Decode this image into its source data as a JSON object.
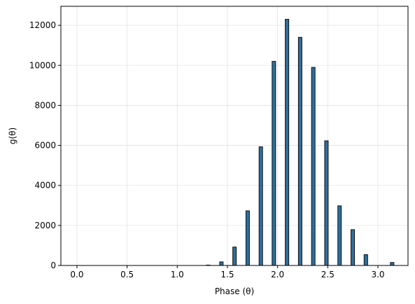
{
  "chart_data": {
    "type": "bar",
    "x_label": "Phase (θ)",
    "y_label": "g(θ)",
    "x": [
      1.309,
      1.44,
      1.571,
      1.702,
      1.833,
      1.963,
      2.094,
      2.225,
      2.356,
      2.487,
      2.618,
      2.749,
      2.88,
      3.142
    ],
    "values": [
      20,
      180,
      920,
      2730,
      5930,
      10200,
      12300,
      11400,
      9900,
      6230,
      2980,
      1790,
      540,
      150
    ],
    "color": "#2e6f9e",
    "edgecolor": "#111111",
    "xlim": [
      -0.16,
      3.3
    ],
    "ylim": [
      0,
      12950
    ],
    "xticks": [
      {
        "value": 0,
        "label": "0.0"
      },
      {
        "value": 0.5,
        "label": "0.5"
      },
      {
        "value": 1,
        "label": "1.0"
      },
      {
        "value": 1.5,
        "label": "1.5"
      },
      {
        "value": 2,
        "label": "2.0"
      },
      {
        "value": 2.5,
        "label": "2.5"
      },
      {
        "value": 3,
        "label": "3.0"
      }
    ],
    "yticks": [
      0,
      2000,
      4000,
      6000,
      8000,
      10000,
      12000
    ],
    "grid": true
  }
}
